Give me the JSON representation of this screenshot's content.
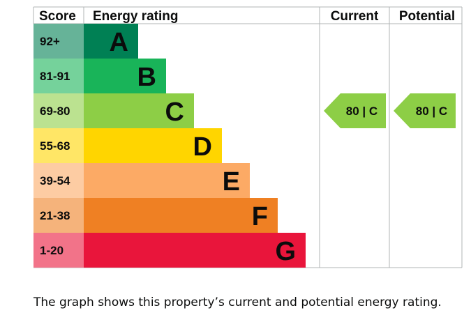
{
  "chart_data": {
    "type": "bar",
    "headers": {
      "score": "Score",
      "rating": "Energy rating",
      "current": "Current",
      "potential": "Potential"
    },
    "bands": [
      {
        "letter": "A",
        "range": "92+",
        "color": "#008054",
        "score_color": "#66b398"
      },
      {
        "letter": "B",
        "range": "81-91",
        "color": "#19b459",
        "score_color": "#75d29b"
      },
      {
        "letter": "C",
        "range": "69-80",
        "color": "#8dce46",
        "score_color": "#bbe290"
      },
      {
        "letter": "D",
        "range": "55-68",
        "color": "#ffd500",
        "score_color": "#ffe666"
      },
      {
        "letter": "E",
        "range": "39-54",
        "color": "#fcaa65",
        "score_color": "#fdcca3"
      },
      {
        "letter": "F",
        "range": "21-38",
        "color": "#ef8023",
        "score_color": "#f5b37b"
      },
      {
        "letter": "G",
        "range": "1-20",
        "color": "#e9153b",
        "score_color": "#f27389"
      }
    ],
    "current": {
      "value": 80,
      "band": "C",
      "label": "80 | C",
      "color": "#8dce46"
    },
    "potential": {
      "value": 80,
      "band": "C",
      "label": "80 | C",
      "color": "#8dce46"
    }
  },
  "caption": "The graph shows this property’s current and potential energy rating."
}
